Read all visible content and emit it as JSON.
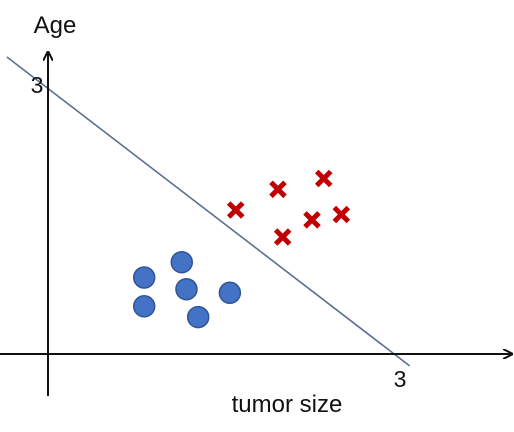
{
  "chart_data": {
    "type": "scatter",
    "title": "",
    "xlabel": "tumor size",
    "ylabel": "Age",
    "xlim": [
      -0.35,
      3.65
    ],
    "ylim": [
      -0.35,
      3.0
    ],
    "ticks": {
      "x": [
        {
          "value": 3,
          "label": "3"
        }
      ],
      "y": [
        {
          "value": 3,
          "label": "3"
        }
      ]
    },
    "grid": false,
    "legend": null,
    "series": [
      {
        "marker": "circle",
        "color": "#4472C4",
        "edge_color": "#2F5597",
        "points": [
          {
            "x": 1.14,
            "y": 1.02
          },
          {
            "x": 0.82,
            "y": 0.85
          },
          {
            "x": 1.18,
            "y": 0.72
          },
          {
            "x": 1.55,
            "y": 0.68
          },
          {
            "x": 0.82,
            "y": 0.53
          },
          {
            "x": 1.28,
            "y": 0.41
          }
        ]
      },
      {
        "marker": "x",
        "color": "#C00000",
        "points": [
          {
            "x": 2.35,
            "y": 1.95
          },
          {
            "x": 1.6,
            "y": 1.6
          },
          {
            "x": 1.96,
            "y": 1.83
          },
          {
            "x": 2.5,
            "y": 1.55
          },
          {
            "x": 2.25,
            "y": 1.49
          },
          {
            "x": 2.0,
            "y": 1.3
          }
        ]
      }
    ],
    "decision_boundary": {
      "color": "#5B6F94",
      "points": [
        {
          "x": -0.35,
          "y": 3.3
        },
        {
          "x": 2.95,
          "y": 0
        }
      ]
    }
  }
}
